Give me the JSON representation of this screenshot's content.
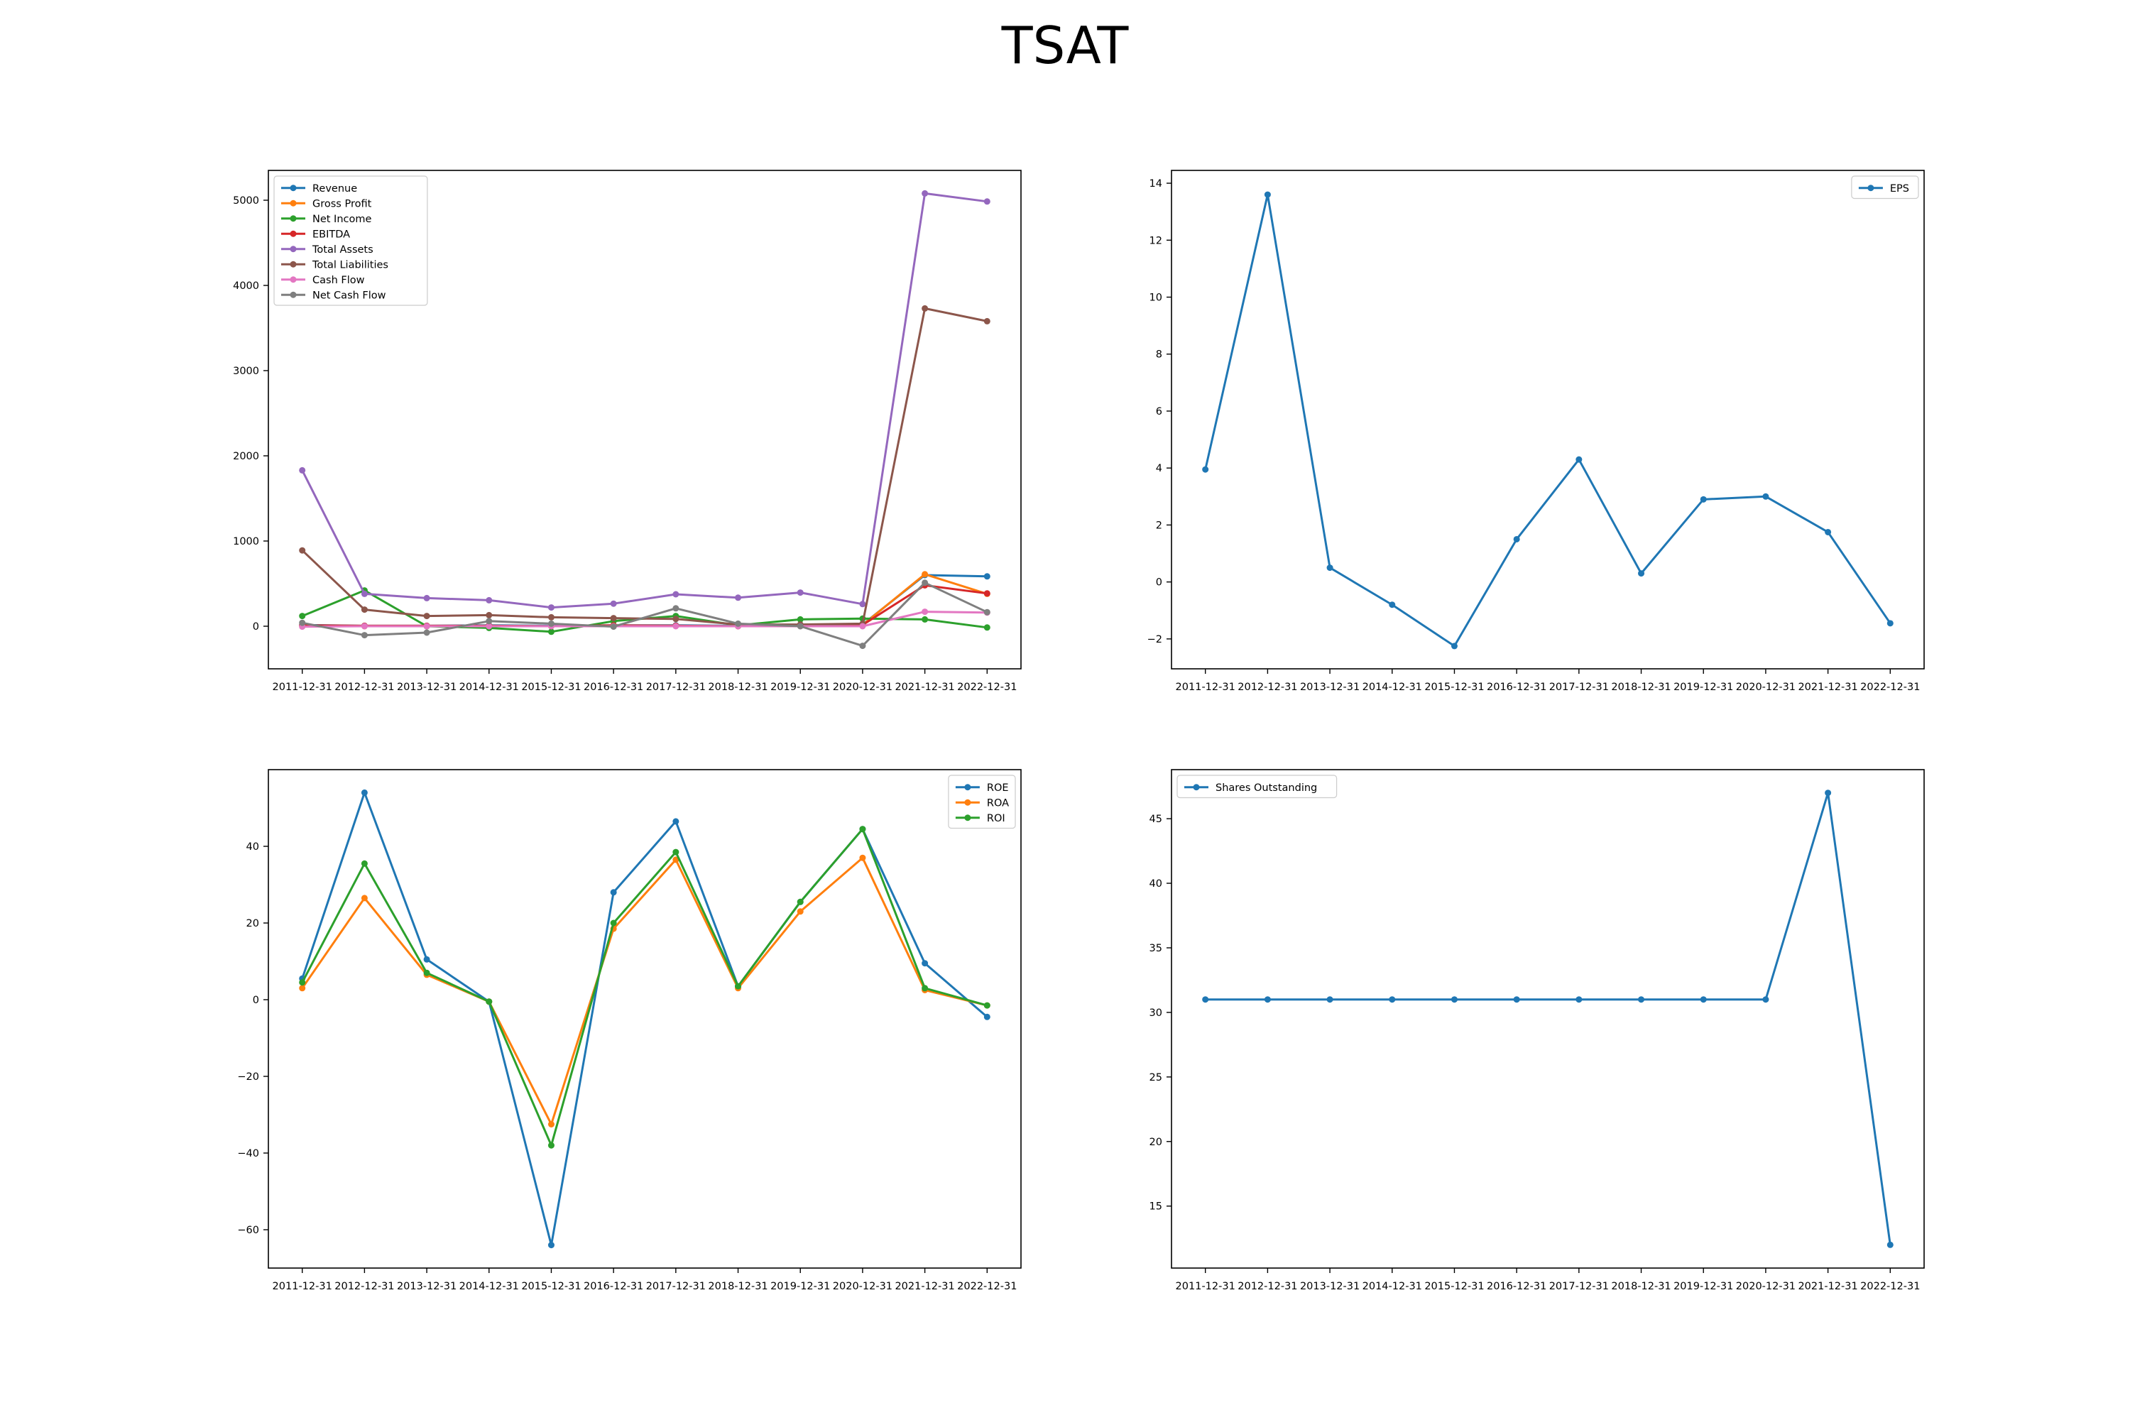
{
  "title": "TSAT",
  "colors": {
    "blue": "#1f77b4",
    "orange": "#ff7f0e",
    "green": "#2ca02c",
    "red": "#d62728",
    "purple": "#9467bd",
    "brown": "#8c564b",
    "pink": "#e377c2",
    "gray": "#7f7f7f"
  },
  "chart_data": [
    {
      "type": "line",
      "x": [
        "2011-12-31",
        "2012-12-31",
        "2013-12-31",
        "2014-12-31",
        "2015-12-31",
        "2016-12-31",
        "2017-12-31",
        "2018-12-31",
        "2019-12-31",
        "2020-12-31",
        "2021-12-31",
        "2022-12-31"
      ],
      "ylim": [
        -500,
        5350
      ],
      "yticks": [
        0,
        1000,
        2000,
        3000,
        4000,
        5000
      ],
      "legend": "upper left",
      "series": [
        {
          "name": "Revenue",
          "color": "#1f77b4",
          "values": [
            15,
            5,
            5,
            10,
            5,
            10,
            10,
            5,
            10,
            20,
            600,
            585
          ]
        },
        {
          "name": "Gross Profit",
          "color": "#ff7f0e",
          "values": [
            5,
            0,
            0,
            5,
            0,
            5,
            5,
            0,
            5,
            15,
            610,
            380
          ]
        },
        {
          "name": "Net Income",
          "color": "#2ca02c",
          "values": [
            120,
            420,
            0,
            -20,
            -65,
            60,
            120,
            10,
            80,
            90,
            80,
            -15
          ]
        },
        {
          "name": "EBITDA",
          "color": "#d62728",
          "values": [
            10,
            5,
            5,
            5,
            0,
            10,
            5,
            0,
            10,
            15,
            480,
            385
          ]
        },
        {
          "name": "Total Assets",
          "color": "#9467bd",
          "values": [
            1830,
            380,
            330,
            305,
            220,
            265,
            375,
            335,
            395,
            260,
            5080,
            4985
          ]
        },
        {
          "name": "Total Liabilities",
          "color": "#8c564b",
          "values": [
            890,
            195,
            120,
            130,
            105,
            95,
            85,
            20,
            20,
            30,
            3730,
            3580
          ]
        },
        {
          "name": "Cash Flow",
          "color": "#e377c2",
          "values": [
            -5,
            0,
            0,
            0,
            0,
            0,
            0,
            0,
            0,
            0,
            170,
            160
          ]
        },
        {
          "name": "Net Cash Flow",
          "color": "#7f7f7f",
          "values": [
            40,
            -105,
            -75,
            60,
            30,
            -5,
            210,
            30,
            0,
            -230,
            510,
            165
          ]
        }
      ]
    },
    {
      "type": "line",
      "x": [
        "2011-12-31",
        "2012-12-31",
        "2013-12-31",
        "2014-12-31",
        "2015-12-31",
        "2016-12-31",
        "2017-12-31",
        "2018-12-31",
        "2019-12-31",
        "2020-12-31",
        "2021-12-31",
        "2022-12-31"
      ],
      "ylim": [
        -3.05,
        14.45
      ],
      "yticks": [
        -2,
        0,
        2,
        4,
        6,
        8,
        10,
        12,
        14
      ],
      "legend": "upper right",
      "series": [
        {
          "name": "EPS",
          "color": "#1f77b4",
          "values": [
            3.95,
            13.6,
            0.5,
            -0.8,
            -2.25,
            1.5,
            4.3,
            0.3,
            2.9,
            3.0,
            1.75,
            -1.45
          ]
        }
      ]
    },
    {
      "type": "line",
      "x": [
        "2011-12-31",
        "2012-12-31",
        "2013-12-31",
        "2014-12-31",
        "2015-12-31",
        "2016-12-31",
        "2017-12-31",
        "2018-12-31",
        "2019-12-31",
        "2020-12-31",
        "2021-12-31",
        "2022-12-31"
      ],
      "ylim": [
        -70,
        60
      ],
      "yticks": [
        -60,
        -40,
        -20,
        0,
        20,
        40
      ],
      "legend": "upper right",
      "series": [
        {
          "name": "ROE",
          "color": "#1f77b4",
          "values": [
            5.5,
            54,
            10.5,
            -0.5,
            -64,
            28,
            46.5,
            3.5,
            25.5,
            44.5,
            9.5,
            -4.5
          ]
        },
        {
          "name": "ROA",
          "color": "#ff7f0e",
          "values": [
            3,
            26.5,
            6.5,
            -0.5,
            -32.5,
            18.5,
            36.5,
            3,
            23,
            37,
            2.5,
            -1.5
          ]
        },
        {
          "name": "ROI",
          "color": "#2ca02c",
          "values": [
            4.5,
            35.5,
            7,
            -0.5,
            -38,
            20,
            38.5,
            3.5,
            25.5,
            44.5,
            3,
            -1.5
          ]
        }
      ]
    },
    {
      "type": "line",
      "x": [
        "2011-12-31",
        "2012-12-31",
        "2013-12-31",
        "2014-12-31",
        "2015-12-31",
        "2016-12-31",
        "2017-12-31",
        "2018-12-31",
        "2019-12-31",
        "2020-12-31",
        "2021-12-31",
        "2022-12-31"
      ],
      "ylim": [
        10.2,
        48.8
      ],
      "yticks": [
        15,
        20,
        25,
        30,
        35,
        40,
        45
      ],
      "legend": "upper left",
      "series": [
        {
          "name": "Shares Outstanding",
          "color": "#1f77b4",
          "values": [
            31,
            31,
            31,
            31,
            31,
            31,
            31,
            31,
            31,
            31,
            47,
            12
          ]
        }
      ]
    }
  ]
}
